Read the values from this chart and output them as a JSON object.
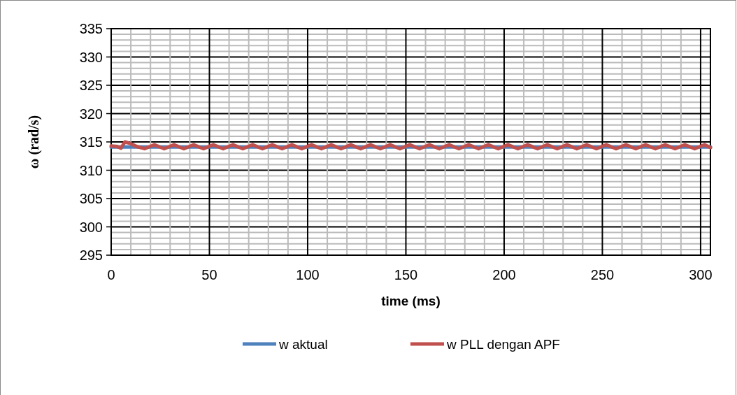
{
  "chart_data": {
    "type": "line",
    "xlabel": "time (ms)",
    "ylabel": "ω (rad/s)",
    "xlim": [
      0,
      305
    ],
    "ylim": [
      295,
      335
    ],
    "xticks": [
      0,
      {
        "value": 10,
        "label": null
      },
      {
        "value": 20,
        "label": null
      },
      {
        "value": 30,
        "label": null
      },
      {
        "value": 40,
        "label": null
      },
      50,
      {
        "value": 60,
        "label": null
      },
      {
        "value": 70,
        "label": null
      },
      {
        "value": 80,
        "label": null
      },
      {
        "value": 90,
        "label": null
      },
      100,
      {
        "value": 110,
        "label": null
      },
      {
        "value": 120,
        "label": null
      },
      {
        "value": 130,
        "label": null
      },
      {
        "value": 140,
        "label": null
      },
      150,
      {
        "value": 160,
        "label": null
      },
      {
        "value": 170,
        "label": null
      },
      {
        "value": 180,
        "label": null
      },
      {
        "value": 190,
        "label": null
      },
      200,
      {
        "value": 210,
        "label": null
      },
      {
        "value": 220,
        "label": null
      },
      {
        "value": 230,
        "label": null
      },
      {
        "value": 240,
        "label": null
      },
      250,
      {
        "value": 260,
        "label": null
      },
      {
        "value": 270,
        "label": null
      },
      {
        "value": 280,
        "label": null
      },
      {
        "value": 290,
        "label": null
      },
      300
    ],
    "yticks": [
      295,
      {
        "value": 296,
        "label": null
      },
      {
        "value": 297,
        "label": null
      },
      {
        "value": 298,
        "label": null
      },
      {
        "value": 299,
        "label": null
      },
      300,
      {
        "value": 301,
        "label": null
      },
      {
        "value": 302,
        "label": null
      },
      {
        "value": 303,
        "label": null
      },
      {
        "value": 304,
        "label": null
      },
      305,
      {
        "value": 306,
        "label": null
      },
      {
        "value": 307,
        "label": null
      },
      {
        "value": 308,
        "label": null
      },
      {
        "value": 309,
        "label": null
      },
      310,
      {
        "value": 311,
        "label": null
      },
      {
        "value": 312,
        "label": null
      },
      {
        "value": 313,
        "label": null
      },
      {
        "value": 314,
        "label": null
      },
      315,
      {
        "value": 316,
        "label": null
      },
      {
        "value": 317,
        "label": null
      },
      {
        "value": 318,
        "label": null
      },
      {
        "value": 319,
        "label": null
      },
      320,
      {
        "value": 321,
        "label": null
      },
      {
        "value": 322,
        "label": null
      },
      {
        "value": 323,
        "label": null
      },
      {
        "value": 324,
        "label": null
      },
      325,
      {
        "value": 326,
        "label": null
      },
      {
        "value": 327,
        "label": null
      },
      {
        "value": 328,
        "label": null
      },
      {
        "value": 329,
        "label": null
      },
      330,
      {
        "value": 331,
        "label": null
      },
      {
        "value": 332,
        "label": null
      },
      {
        "value": 333,
        "label": null
      },
      {
        "value": 334,
        "label": null
      },
      335
    ],
    "grid": true,
    "legend": "bottom",
    "series": [
      {
        "name": "w aktual",
        "color": "#4f81bd",
        "x": [
          0,
          305
        ],
        "values": [
          314.1,
          314.1
        ]
      },
      {
        "name": "w PLL dengan APF",
        "color": "#c0504d",
        "x": [
          0,
          3,
          5,
          7,
          10,
          13,
          17,
          22,
          27,
          32,
          37,
          42,
          47,
          52,
          57,
          62,
          67,
          72,
          77,
          82,
          87,
          92,
          97,
          102,
          107,
          112,
          117,
          122,
          127,
          132,
          137,
          142,
          147,
          152,
          157,
          162,
          167,
          172,
          177,
          182,
          187,
          192,
          197,
          202,
          207,
          212,
          217,
          222,
          227,
          232,
          237,
          242,
          247,
          252,
          257,
          262,
          267,
          272,
          277,
          282,
          287,
          292,
          297,
          302,
          305
        ],
        "values": [
          314.3,
          314.2,
          313.9,
          315.0,
          314.7,
          314.2,
          313.8,
          314.5,
          313.8,
          314.5,
          313.8,
          314.5,
          313.8,
          314.5,
          313.8,
          314.5,
          313.8,
          314.5,
          313.8,
          314.5,
          313.8,
          314.5,
          313.8,
          314.5,
          313.8,
          314.5,
          313.8,
          314.5,
          313.8,
          314.5,
          313.8,
          314.5,
          313.8,
          314.5,
          313.8,
          314.5,
          313.8,
          314.5,
          313.8,
          314.5,
          313.8,
          314.5,
          313.8,
          314.5,
          313.8,
          314.5,
          313.8,
          314.5,
          313.8,
          314.5,
          313.8,
          314.5,
          313.8,
          314.5,
          313.8,
          314.5,
          313.8,
          314.5,
          313.8,
          314.5,
          313.8,
          314.5,
          313.8,
          314.5,
          314.0
        ]
      }
    ]
  }
}
